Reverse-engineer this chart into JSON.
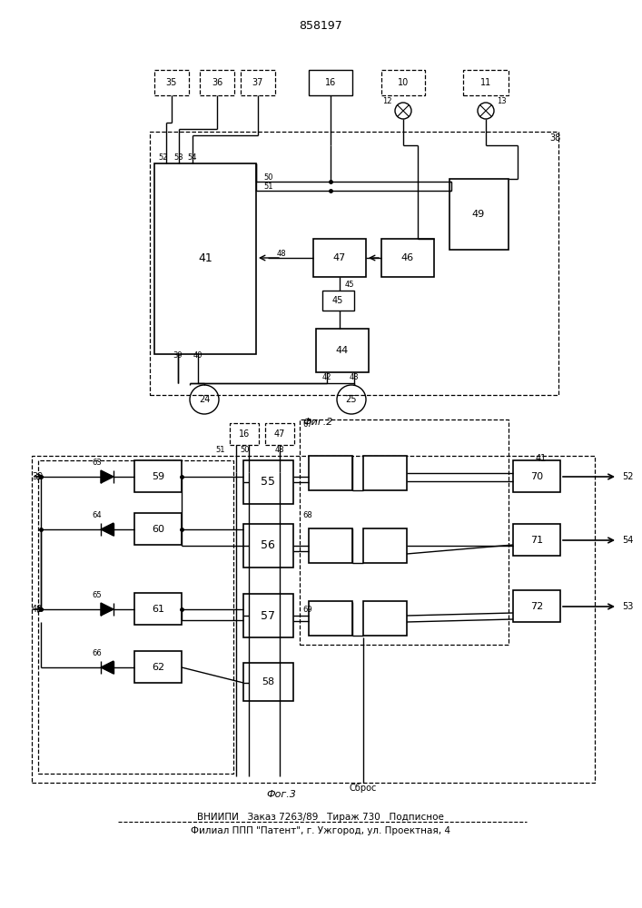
{
  "title": "858197",
  "fig2_label": "Фиг.2",
  "fig3_label": "Фог.3",
  "footer1": "ВНИИПИ   Заказ 7263/89   Тираж 730   Подписное",
  "footer2": "Филиал ППП \"Патент\", г. Ужгород, ул. Проектная, 4",
  "bg_color": "#ffffff"
}
